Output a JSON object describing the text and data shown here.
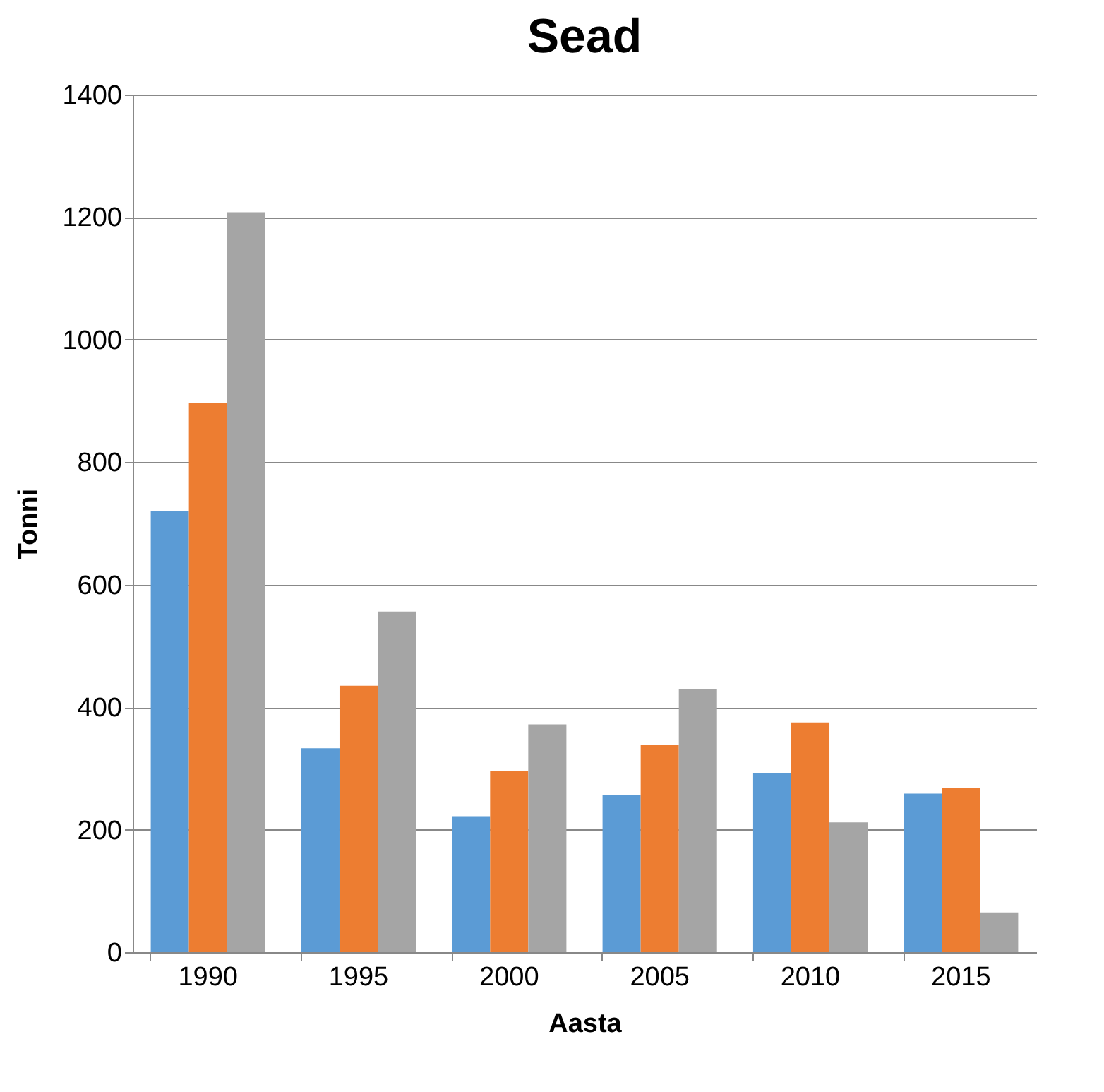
{
  "chart_data": {
    "type": "bar",
    "title": "Sead",
    "xlabel": "Aasta",
    "ylabel": "Tonni",
    "categories": [
      "1990",
      "1995",
      "2000",
      "2005",
      "2010",
      "2015"
    ],
    "series": [
      {
        "color": "#5b9bd5",
        "values": [
          720,
          333,
          222,
          256,
          292,
          259
        ]
      },
      {
        "color": "#ed7d31",
        "values": [
          897,
          435,
          296,
          338,
          375,
          268
        ]
      },
      {
        "color": "#a5a5a5",
        "values": [
          1208,
          556,
          372,
          429,
          212,
          65
        ]
      }
    ],
    "ylim": [
      0,
      1400
    ],
    "yticks": [
      0,
      200,
      400,
      600,
      800,
      1000,
      1200,
      1400
    ],
    "grid": "y"
  }
}
